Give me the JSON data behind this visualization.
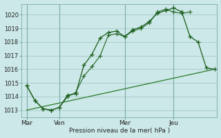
{
  "bg_color": "#cce8e8",
  "grid_color": "#aacccc",
  "line_color_dark": "#1a5c1a",
  "line_color_mid": "#2a7a2a",
  "ylim": [
    1012.5,
    1020.8
  ],
  "yticks": [
    1013,
    1014,
    1015,
    1016,
    1017,
    1018,
    1019,
    1020
  ],
  "xlabel": "Pression niveau de la mer( hPa )",
  "xtick_labels": [
    "Mar",
    "Ven",
    "Mer",
    "Jeu"
  ],
  "xtick_positions": [
    0,
    24,
    72,
    108
  ],
  "vline_positions": [
    0,
    24,
    72,
    108
  ],
  "xlim": [
    -4,
    140
  ],
  "line1_x": [
    0,
    6,
    12,
    18,
    24,
    30,
    36,
    42,
    48,
    54,
    60,
    66,
    72,
    78,
    84,
    90,
    96,
    102,
    108,
    114,
    120,
    126,
    132,
    138
  ],
  "line1_y": [
    1014.8,
    1013.7,
    1013.1,
    1013.0,
    1013.2,
    1014.1,
    1014.2,
    1016.3,
    1017.1,
    1018.3,
    1018.7,
    1018.8,
    1018.4,
    1018.9,
    1019.1,
    1019.5,
    1020.1,
    1020.3,
    1020.5,
    1020.2,
    1018.4,
    1018.0,
    1016.1,
    1016.0
  ],
  "line2_x": [
    0,
    6,
    12,
    18,
    24,
    30,
    36,
    42,
    48,
    54,
    60,
    66,
    72,
    78,
    84,
    90,
    96,
    102,
    108,
    114,
    120
  ],
  "line2_y": [
    1014.8,
    1013.7,
    1013.1,
    1013.0,
    1013.2,
    1014.0,
    1014.3,
    1015.5,
    1016.2,
    1017.0,
    1018.5,
    1018.6,
    1018.4,
    1018.8,
    1019.0,
    1019.4,
    1020.2,
    1020.4,
    1020.2,
    1020.1,
    1020.2
  ],
  "line3_x": [
    0,
    138
  ],
  "line3_y": [
    1013.0,
    1016.0
  ],
  "figsize": [
    3.2,
    2.0
  ],
  "dpi": 100
}
